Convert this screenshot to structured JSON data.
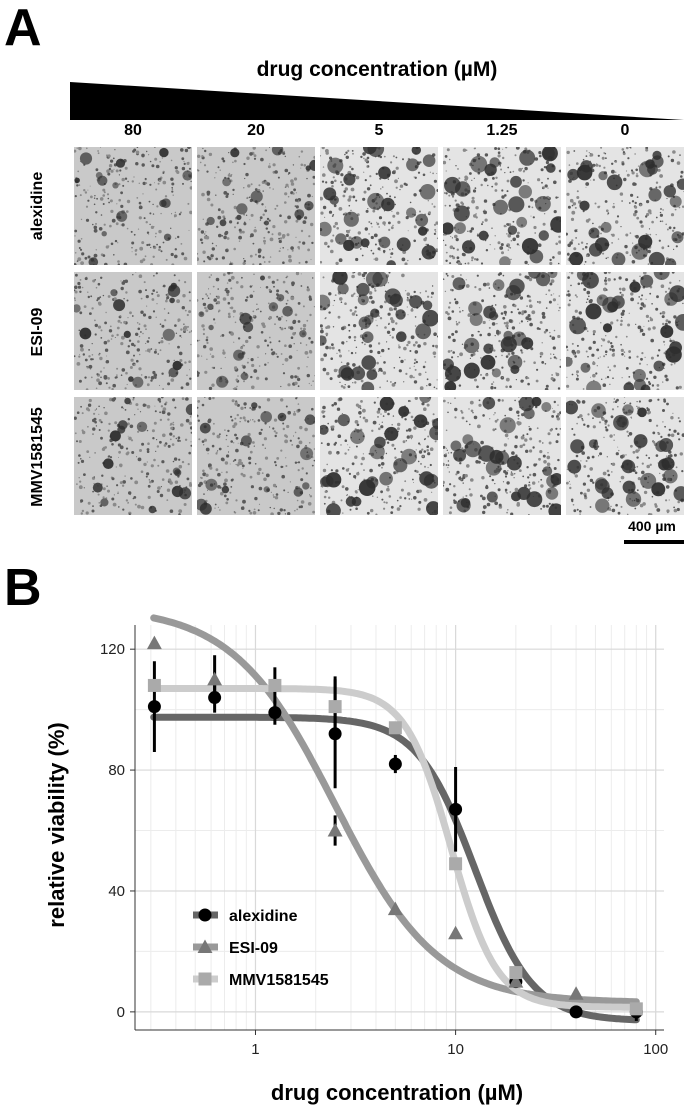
{
  "panel_a": {
    "letter": "A",
    "wedge_title": "drug concentration (µM)",
    "concentrations": [
      "80",
      "20",
      "5",
      "1.25",
      "0"
    ],
    "drugs": [
      "alexidine",
      "ESI-09",
      "MMV1581545"
    ],
    "scale_bar_label": "400 µm"
  },
  "panel_b": {
    "letter": "B"
  },
  "chart_data": {
    "type": "scatter",
    "xlabel": "drug concentration (µM)",
    "ylabel": "relative viability (%)",
    "x_scale": "log",
    "xlim": [
      0.25,
      110
    ],
    "ylim": [
      -6,
      128
    ],
    "x_ticks": [
      1,
      10,
      100
    ],
    "x_tick_labels": [
      "1",
      "10",
      "100"
    ],
    "y_ticks": [
      0,
      40,
      80,
      120
    ],
    "y_tick_labels": [
      "0",
      "40",
      "80",
      "120"
    ],
    "grid": true,
    "legend_position": "bottom-left",
    "series": [
      {
        "name": "alexidine",
        "marker": "circle",
        "color": "#000000",
        "line_color": "#666666",
        "x": [
          0.3125,
          0.625,
          1.25,
          2.5,
          5,
          10,
          20,
          40,
          80
        ],
        "y": [
          101,
          104,
          99,
          92,
          82,
          67,
          10,
          0,
          0
        ],
        "err": [
          15,
          5,
          4,
          18,
          3,
          14,
          0,
          0,
          3
        ],
        "fit": {
          "top": 97.5,
          "bottom": -3,
          "ic50": 12.5,
          "hill": 3.0
        }
      },
      {
        "name": "ESI-09",
        "marker": "triangle",
        "color": "#777777",
        "line_color": "#999999",
        "x": [
          0.3125,
          0.625,
          2.5,
          5,
          10,
          20,
          40
        ],
        "y": [
          122,
          110,
          60,
          34,
          26,
          10,
          6
        ],
        "err": [
          0,
          8,
          5,
          0,
          0,
          0,
          0
        ],
        "fit": {
          "top": 134,
          "bottom": 3,
          "ic50": 2.5,
          "hill": 1.7
        }
      },
      {
        "name": "MMV1581545",
        "marker": "square",
        "color": "#aaaaaa",
        "line_color": "#cccccc",
        "x": [
          0.3125,
          1.25,
          2.5,
          5,
          10,
          20,
          80
        ],
        "y": [
          108,
          108,
          101,
          94,
          49,
          13,
          1
        ],
        "err": [
          0,
          6,
          10,
          0,
          0,
          0,
          0
        ],
        "fit": {
          "top": 107,
          "bottom": 1.5,
          "ic50": 9.5,
          "hill": 3.8
        }
      }
    ]
  }
}
